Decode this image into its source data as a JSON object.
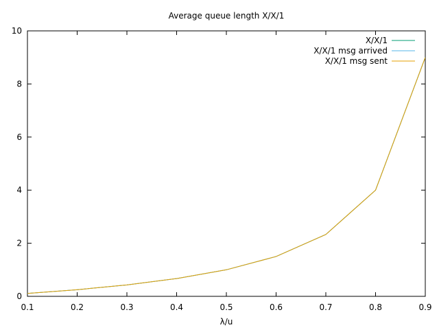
{
  "chart_data": {
    "type": "line",
    "title": "Average queue length X/X/1",
    "xlabel": "λ/u",
    "ylabel": "",
    "xlim": [
      0.1,
      0.9
    ],
    "ylim": [
      0,
      10
    ],
    "xticks": [
      "0.1",
      "0.2",
      "0.3",
      "0.4",
      "0.5",
      "0.6",
      "0.7",
      "0.8",
      "0.9"
    ],
    "yticks": [
      "0",
      "2",
      "4",
      "6",
      "8",
      "10"
    ],
    "grid": false,
    "legend_position": "top-right",
    "x": [
      0.1,
      0.2,
      0.3,
      0.4,
      0.5,
      0.6,
      0.7,
      0.8,
      0.9
    ],
    "series": [
      {
        "name": "X/X/1",
        "color": "#009e73",
        "values": [
          0.11,
          0.25,
          0.43,
          0.67,
          1.0,
          1.5,
          2.33,
          4.0,
          9.0
        ]
      },
      {
        "name": "X/X/1 msg arrived",
        "color": "#56b4e9",
        "values": [
          0.11,
          0.25,
          0.43,
          0.67,
          1.0,
          1.5,
          2.33,
          4.0,
          9.0
        ]
      },
      {
        "name": "X/X/1 msg sent",
        "color": "#e69f00",
        "values": [
          0.11,
          0.25,
          0.43,
          0.67,
          1.0,
          1.5,
          2.33,
          4.0,
          9.0
        ]
      }
    ]
  }
}
